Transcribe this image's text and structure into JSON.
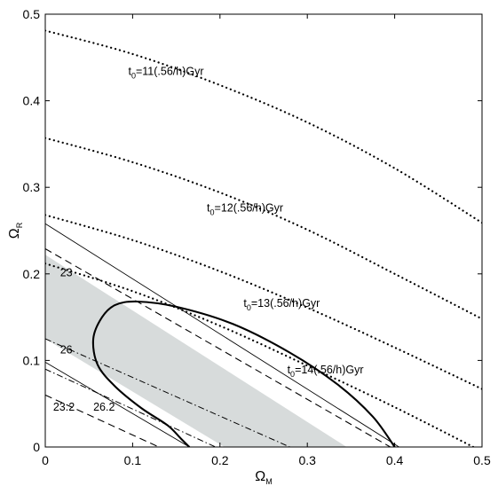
{
  "chart_data": {
    "type": "line",
    "title": "",
    "xlabel": {
      "base": "Ω",
      "sub": "M"
    },
    "ylabel": {
      "base": "Ω",
      "sub": "R"
    },
    "xlim": [
      0,
      0.5
    ],
    "ylim": [
      0,
      0.5
    ],
    "xticks": [
      "0",
      "0.1",
      "0.2",
      "0.3",
      "0.4",
      "0.5"
    ],
    "yticks": [
      "0",
      "0.1",
      "0.2",
      "0.3",
      "0.4",
      "0.5"
    ],
    "grid": false,
    "shaded_band": {
      "color": "#d7dbdb",
      "polygon": [
        [
          0,
          0.222
        ],
        [
          0,
          0.125
        ],
        [
          0.205,
          0
        ],
        [
          0.345,
          0
        ]
      ]
    },
    "series": [
      {
        "style": "dotted",
        "points": [
          [
            0,
            0.481
          ],
          [
            0.1,
            0.454
          ],
          [
            0.2,
            0.418
          ],
          [
            0.3,
            0.375
          ],
          [
            0.4,
            0.322
          ],
          [
            0.5,
            0.259
          ]
        ]
      },
      {
        "style": "dotted",
        "points": [
          [
            0,
            0.357
          ],
          [
            0.1,
            0.329
          ],
          [
            0.2,
            0.294
          ],
          [
            0.3,
            0.251
          ],
          [
            0.4,
            0.2
          ],
          [
            0.5,
            0.148
          ]
        ]
      },
      {
        "style": "dotted",
        "points": [
          [
            0,
            0.268
          ],
          [
            0.1,
            0.239
          ],
          [
            0.2,
            0.203
          ],
          [
            0.3,
            0.161
          ],
          [
            0.4,
            0.115
          ],
          [
            0.5,
            0.067
          ]
        ]
      },
      {
        "style": "dotted",
        "points": [
          [
            0,
            0.212
          ],
          [
            0.1,
            0.18
          ],
          [
            0.2,
            0.14
          ],
          [
            0.3,
            0.094
          ],
          [
            0.4,
            0.046
          ],
          [
            0.49,
            0.0
          ]
        ]
      },
      {
        "style": "solid-thin",
        "points": [
          [
            0,
            0.258
          ],
          [
            0.405,
            0
          ]
        ]
      },
      {
        "style": "solid-thin",
        "points": [
          [
            0,
            0.098
          ],
          [
            0.165,
            0
          ]
        ]
      },
      {
        "style": "dashed",
        "points": [
          [
            0,
            0.229
          ],
          [
            0.395,
            0
          ]
        ]
      },
      {
        "style": "dashed",
        "points": [
          [
            0,
            0.06
          ],
          [
            0.13,
            0
          ]
        ]
      },
      {
        "style": "dashdot",
        "points": [
          [
            0,
            0.125
          ],
          [
            0.28,
            0
          ]
        ]
      },
      {
        "style": "dashdot",
        "points": [
          [
            0,
            0.09
          ],
          [
            0.195,
            0
          ]
        ]
      },
      {
        "style": "ellipse-thick",
        "points": [
          [
            0.4,
            0
          ],
          [
            0.375,
            0.035
          ],
          [
            0.335,
            0.072
          ],
          [
            0.28,
            0.109
          ],
          [
            0.215,
            0.142
          ],
          [
            0.15,
            0.162
          ],
          [
            0.105,
            0.168
          ],
          [
            0.08,
            0.164
          ],
          [
            0.065,
            0.15
          ],
          [
            0.055,
            0.125
          ],
          [
            0.06,
            0.095
          ],
          [
            0.08,
            0.07
          ],
          [
            0.11,
            0.045
          ],
          [
            0.14,
            0.025
          ],
          [
            0.155,
            0.01
          ],
          [
            0.165,
            0
          ]
        ]
      }
    ],
    "annotations": [
      {
        "base": "t",
        "sub": "0",
        "text": "=11(.56/h)Gyr",
        "x": 0.095,
        "y": 0.43
      },
      {
        "base": "t",
        "sub": "0",
        "text": "=12(.56/h)Gyr",
        "x": 0.185,
        "y": 0.272
      },
      {
        "base": "t",
        "sub": "0",
        "text": "=13(.56/h)Gyr",
        "x": 0.227,
        "y": 0.162
      },
      {
        "base": "t",
        "sub": "0",
        "text": "=14(.56/h)Gyr",
        "x": 0.277,
        "y": 0.085
      },
      {
        "text": "23",
        "x": 0.017,
        "y": 0.197
      },
      {
        "text": "26",
        "x": 0.017,
        "y": 0.108
      },
      {
        "text": "23.2",
        "x": 0.009,
        "y": 0.042
      },
      {
        "text": "26.2",
        "x": 0.055,
        "y": 0.042
      }
    ]
  }
}
